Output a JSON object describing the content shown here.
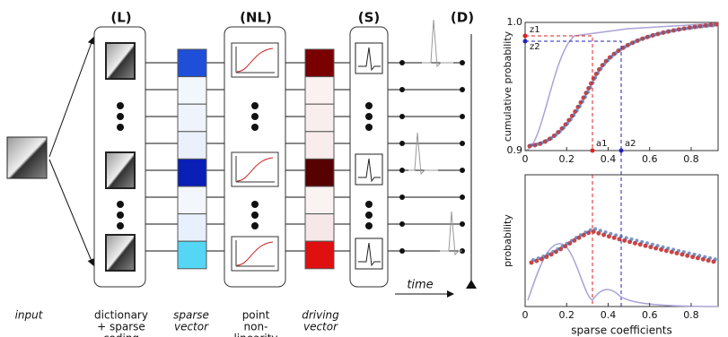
{
  "stages": [
    "(L)",
    "(NL)",
    "(S)",
    "(D)"
  ],
  "time_label": "time",
  "bottom_labels": [
    [
      "input"
    ],
    [
      "dictionary",
      "+ sparse",
      "coding"
    ],
    [
      "sparse",
      "vector"
    ],
    [
      "point",
      "non-",
      "linearity"
    ],
    [
      "driving",
      "vector"
    ]
  ],
  "top_plot": {
    "ylabel": "cumulative probability",
    "xlim": [
      0,
      0.93
    ],
    "ylim": [
      0.9,
      1.0
    ],
    "xticks": [
      0,
      0.2,
      0.4,
      0.6,
      0.8
    ],
    "yticks": [
      0.9,
      {
        "value": 1.0,
        "label": "1.0"
      }
    ],
    "annotations": [
      "z1",
      "z2",
      "a1",
      "a2"
    ]
  },
  "bottom_plot": {
    "ylabel": "probability",
    "xlabel": "sparse coefficients",
    "xlim": [
      0,
      0.93
    ],
    "xticks": [
      0,
      0.2,
      0.4,
      0.6,
      0.8
    ]
  }
}
